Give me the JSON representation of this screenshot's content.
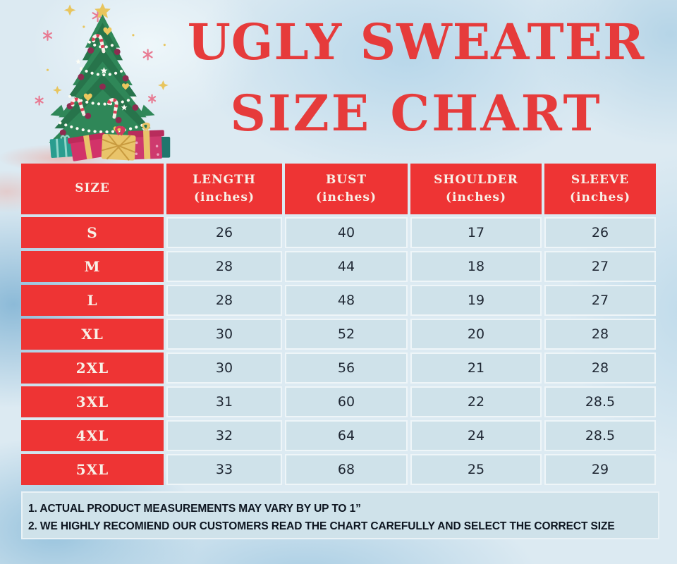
{
  "title": {
    "line1": "UGLY SWEATER",
    "line2": "SIZE CHART"
  },
  "decoration": {
    "tree_icon": "christmas-tree-with-presents",
    "sparkle_icons": [
      "pink-asterisk-sparkle",
      "gold-four-point-sparkle"
    ],
    "tree_parts": [
      "gold-star-topper",
      "white-dot-garland",
      "maroon-ornament-balls",
      "gold-hearts",
      "candy-canes",
      "gift-boxes"
    ]
  },
  "table": {
    "columns": [
      {
        "label": "SIZE",
        "sub": ""
      },
      {
        "label": "LENGTH",
        "sub": "(inches)"
      },
      {
        "label": "BUST",
        "sub": "(inches)"
      },
      {
        "label": "SHOULDER",
        "sub": "(inches)"
      },
      {
        "label": "SLEEVE",
        "sub": "(inches)"
      }
    ],
    "rows": [
      {
        "size": "S",
        "length": "26",
        "bust": "40",
        "shoulder": "17",
        "sleeve": "26"
      },
      {
        "size": "M",
        "length": "28",
        "bust": "44",
        "shoulder": "18",
        "sleeve": "27"
      },
      {
        "size": "L",
        "length": "28",
        "bust": "48",
        "shoulder": "19",
        "sleeve": "27"
      },
      {
        "size": "XL",
        "length": "30",
        "bust": "52",
        "shoulder": "20",
        "sleeve": "28"
      },
      {
        "size": "2XL",
        "length": "30",
        "bust": "56",
        "shoulder": "21",
        "sleeve": "28"
      },
      {
        "size": "3XL",
        "length": "31",
        "bust": "60",
        "shoulder": "22",
        "sleeve": "28.5"
      },
      {
        "size": "4XL",
        "length": "32",
        "bust": "64",
        "shoulder": "24",
        "sleeve": "28.5"
      },
      {
        "size": "5XL",
        "length": "33",
        "bust": "68",
        "shoulder": "25",
        "sleeve": "29"
      }
    ]
  },
  "notes": [
    "1. ACTUAL PRODUCT MEASUREMENTS MAY VARY BY UP TO 1”",
    "2. WE HIGHLY RECOMIEND OUR CUSTOMERS READ THE CHART CAREFULLY AND SELECT THE CORRECT SIZE"
  ],
  "colors": {
    "accent_red": "#ee3434",
    "title_red": "#e63b3b",
    "cell_blue": "#cfe2ea",
    "background_blue": "#dceaf2",
    "text_dark": "#1f2733",
    "header_text": "#f8f0e7"
  }
}
